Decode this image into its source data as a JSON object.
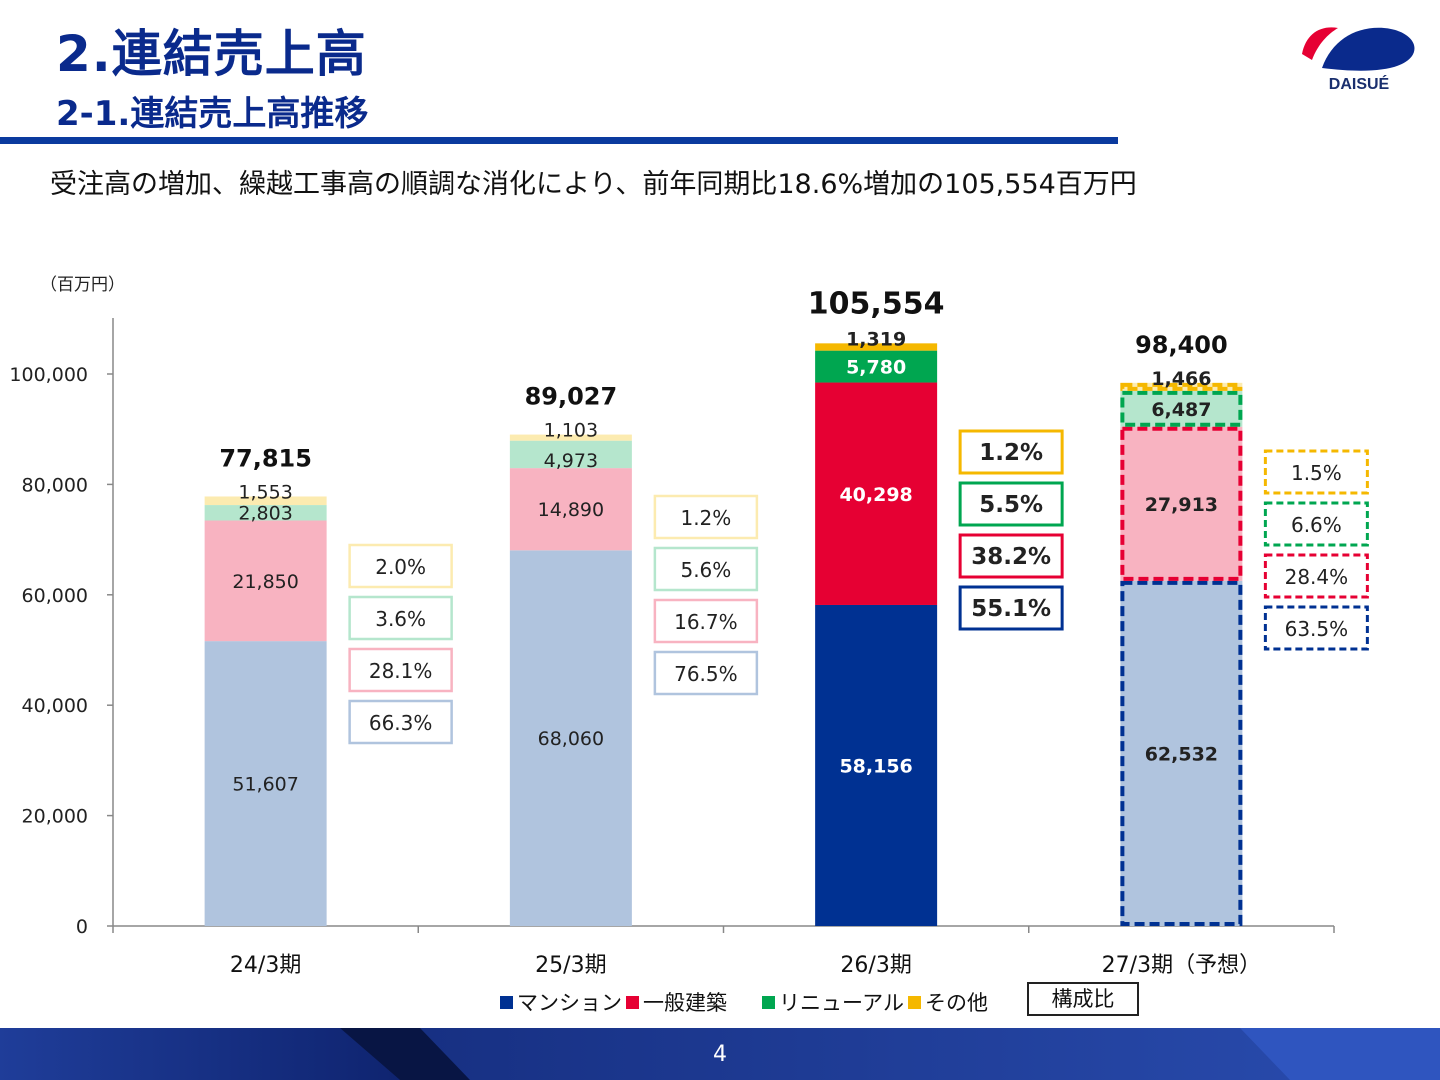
{
  "header": {
    "title": "2.連結売上高",
    "subtitle": "2-1.連結売上高推移",
    "logo_text": "DAISUÉ"
  },
  "lead_text": "受注高の増加、繰越工事高の順調な消化により、前年同期比18.6%増加の105,554百万円",
  "chart_data": {
    "type": "bar",
    "stacked": true,
    "unit_label": "（百万円）",
    "categories": [
      "24/3期",
      "25/3期",
      "26/3期",
      "27/3期（予想）"
    ],
    "ylim": [
      0,
      110000
    ],
    "yticks": [
      0,
      20000,
      40000,
      60000,
      80000,
      100000
    ],
    "ytick_labels": [
      "0",
      "20,000",
      "40,000",
      "60,000",
      "80,000",
      "100,000"
    ],
    "series": [
      {
        "name": "マンション",
        "values": [
          51607,
          68060,
          58156,
          62532
        ],
        "labels": [
          "51,607",
          "68,060",
          "58,156",
          "62,532"
        ],
        "color": "#003192",
        "muted_color": "#b0c4de"
      },
      {
        "name": "一般建築",
        "values": [
          21850,
          14890,
          40298,
          27913
        ],
        "labels": [
          "21,850",
          "14,890",
          "40,298",
          "27,913"
        ],
        "color": "#e60033",
        "muted_color": "#f8b3c1"
      },
      {
        "name": "リニューアル",
        "values": [
          2803,
          4973,
          5780,
          6487
        ],
        "labels": [
          "2,803",
          "4,973",
          "5,780",
          "6,487"
        ],
        "color": "#00a650",
        "muted_color": "#b5e6cd"
      },
      {
        "name": "その他",
        "values": [
          1553,
          1103,
          1319,
          1466
        ],
        "labels": [
          "1,553",
          "1,103",
          "1,319",
          "1,466"
        ],
        "color": "#f5b800",
        "muted_color": "#fcebb0"
      }
    ],
    "totals": [
      77815,
      89027,
      105554,
      98400
    ],
    "total_labels": [
      "77,815",
      "89,027",
      "105,554",
      "98,400"
    ],
    "composition_ratio": {
      "label": "構成比",
      "values": [
        [
          "66.3%",
          "28.1%",
          "3.6%",
          "2.0%"
        ],
        [
          "76.5%",
          "16.7%",
          "5.6%",
          "1.2%"
        ],
        [
          "55.1%",
          "38.2%",
          "5.5%",
          "1.2%"
        ],
        [
          "63.5%",
          "28.4%",
          "6.6%",
          "1.5%"
        ]
      ]
    },
    "highlight_category": "26/3期",
    "forecast_category": "27/3期（予想）",
    "legend_position": "bottom",
    "grid": false
  },
  "footer": {
    "page_number": "4",
    "colors": {
      "dark": "#0a1a5c",
      "mid": "#1f3d99"
    }
  }
}
